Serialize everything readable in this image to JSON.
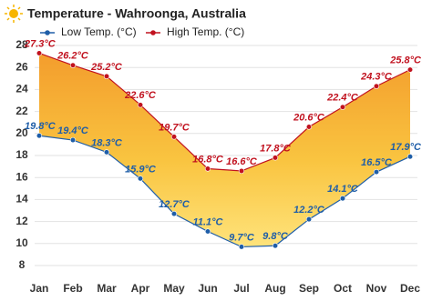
{
  "chart_data": {
    "type": "line",
    "title": "Temperature - Wahroonga, Australia",
    "categories": [
      "Jan",
      "Feb",
      "Mar",
      "Apr",
      "May",
      "Jun",
      "Jul",
      "Aug",
      "Sep",
      "Oct",
      "Nov",
      "Dec"
    ],
    "series": [
      {
        "name": "Low Temp. (°C)",
        "color": "#1f5ea8",
        "values": [
          19.8,
          19.4,
          18.3,
          15.9,
          12.7,
          11.1,
          9.7,
          9.8,
          12.2,
          14.1,
          16.5,
          17.9
        ],
        "value_labels": [
          "19.8°C",
          "19.4°C",
          "18.3°C",
          "15.9°C",
          "12.7°C",
          "11.1°C",
          "9.7°C",
          "9.8°C",
          "12.2°C",
          "14.1°C",
          "16.5°C",
          "17.9°C"
        ]
      },
      {
        "name": "High Temp. (°C)",
        "color": "#c1121f",
        "values": [
          27.3,
          26.2,
          25.2,
          22.6,
          19.7,
          16.8,
          16.6,
          17.8,
          20.6,
          22.4,
          24.3,
          25.8
        ],
        "value_labels": [
          "27.3°C",
          "26.2°C",
          "25.2°C",
          "22.6°C",
          "19.7°C",
          "16.8°C",
          "16.6°C",
          "17.8°C",
          "20.6°C",
          "22.4°C",
          "24.3°C",
          "25.8°C"
        ]
      }
    ],
    "ylim": [
      7,
      28
    ],
    "yticks": [
      8,
      10,
      12,
      14,
      16,
      18,
      20,
      22,
      24,
      26,
      28
    ],
    "grid": true
  }
}
